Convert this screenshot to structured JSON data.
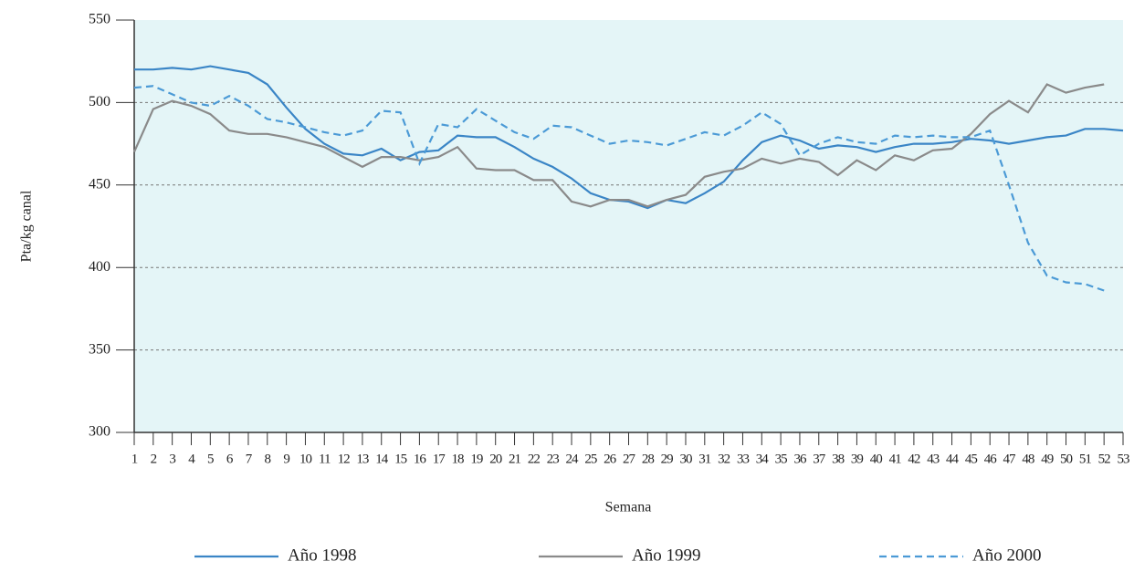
{
  "chart_data": {
    "type": "line",
    "y_label": "Pta/kg canal",
    "x_label": "Semana",
    "x": [
      1,
      2,
      3,
      4,
      5,
      6,
      7,
      8,
      9,
      10,
      11,
      12,
      13,
      14,
      15,
      16,
      17,
      18,
      19,
      20,
      21,
      22,
      23,
      24,
      25,
      26,
      27,
      28,
      29,
      30,
      31,
      32,
      33,
      34,
      35,
      36,
      37,
      38,
      39,
      40,
      41,
      42,
      43,
      44,
      45,
      46,
      47,
      48,
      49,
      50,
      51,
      52,
      53
    ],
    "xlim": [
      1,
      53
    ],
    "xticks": [
      1,
      2,
      3,
      4,
      5,
      6,
      7,
      8,
      9,
      10,
      11,
      12,
      13,
      14,
      15,
      16,
      17,
      18,
      19,
      20,
      21,
      22,
      23,
      24,
      25,
      26,
      27,
      28,
      29,
      30,
      31,
      32,
      33,
      34,
      35,
      36,
      37,
      38,
      39,
      40,
      41,
      42,
      43,
      44,
      45,
      46,
      47,
      48,
      49,
      50,
      51,
      52,
      53
    ],
    "ylim": [
      300,
      550
    ],
    "yticks": [
      300,
      350,
      400,
      450,
      500,
      550
    ],
    "grid": true,
    "background": "#e4f5f7",
    "series": [
      {
        "name": "Año 1998",
        "color": "#3a85c6",
        "dashed": false,
        "values": [
          520,
          520,
          521,
          520,
          522,
          520,
          518,
          511,
          497,
          484,
          475,
          469,
          468,
          472,
          465,
          470,
          471,
          480,
          479,
          479,
          473,
          466,
          461,
          454,
          445,
          441,
          440,
          436,
          441,
          439,
          445,
          452,
          465,
          476,
          480,
          477,
          472,
          474,
          473,
          470,
          473,
          475,
          475,
          476,
          478,
          477,
          475,
          477,
          479,
          480,
          484,
          484,
          483
        ]
      },
      {
        "name": "Año 1999",
        "color": "#8a8a8a",
        "dashed": false,
        "values": [
          470,
          496,
          501,
          498,
          493,
          483,
          481,
          481,
          479,
          476,
          473,
          467,
          461,
          467,
          467,
          465,
          467,
          473,
          460,
          459,
          459,
          453,
          453,
          440,
          437,
          441,
          441,
          437,
          441,
          444,
          455,
          458,
          460,
          466,
          463,
          466,
          464,
          456,
          465,
          459,
          468,
          465,
          471,
          472,
          481,
          493,
          501,
          494,
          511,
          506,
          509,
          511,
          null
        ]
      },
      {
        "name": "Año 2000",
        "color": "#4b9ad6",
        "dashed": true,
        "values": [
          509,
          510,
          505,
          500,
          498,
          504,
          498,
          490,
          488,
          485,
          482,
          480,
          483,
          495,
          494,
          463,
          487,
          485,
          496,
          489,
          482,
          478,
          486,
          485,
          480,
          475,
          477,
          476,
          474,
          478,
          482,
          480,
          486,
          494,
          487,
          468,
          475,
          479,
          476,
          475,
          480,
          479,
          480,
          479,
          479,
          483,
          450,
          415,
          395,
          391,
          390,
          386,
          null
        ]
      }
    ]
  }
}
